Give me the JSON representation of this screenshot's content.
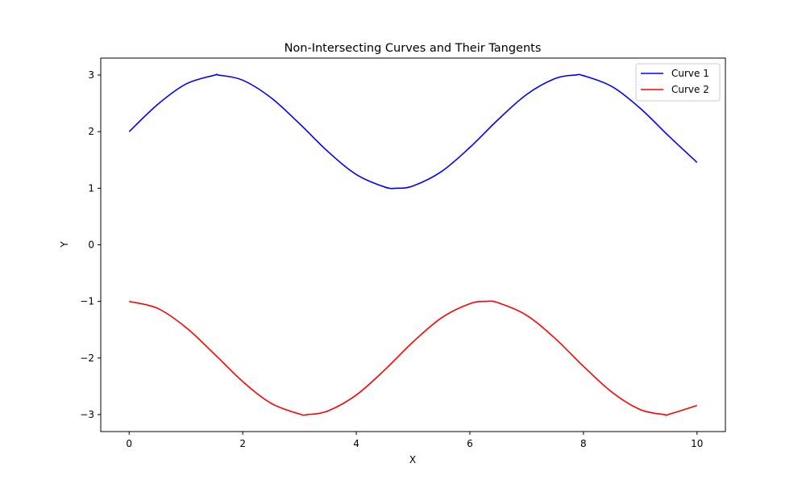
{
  "chart_data": {
    "type": "line",
    "title": "Non-Intersecting Curves and Their Tangents",
    "xlabel": "X",
    "ylabel": "Y",
    "xlim": [
      -0.5,
      10.5
    ],
    "ylim": [
      -3.3,
      3.3
    ],
    "xticks": [
      0,
      2,
      4,
      6,
      8,
      10
    ],
    "xtick_labels": [
      "0",
      "2",
      "4",
      "6",
      "8",
      "10"
    ],
    "yticks": [
      -3,
      -2,
      -1,
      0,
      1,
      2,
      3
    ],
    "ytick_labels": [
      "−3",
      "−2",
      "−1",
      "0",
      "1",
      "2",
      "3"
    ],
    "grid": false,
    "legend_position": "top-right",
    "series": [
      {
        "name": "Curve 1",
        "color": "#0000ff",
        "x": [
          0,
          0.5,
          1,
          1.5,
          1.571,
          2,
          2.5,
          3,
          3.5,
          4,
          4.5,
          4.712,
          5,
          5.5,
          6,
          6.5,
          7,
          7.5,
          7.854,
          8,
          8.5,
          9,
          9.5,
          10
        ],
        "y": [
          2,
          2.479,
          2.841,
          2.997,
          3,
          2.909,
          2.598,
          2.141,
          1.649,
          1.243,
          1.022,
          1,
          1.041,
          1.295,
          1.721,
          2.215,
          2.657,
          2.938,
          3,
          2.989,
          2.798,
          2.412,
          1.925,
          1.456
        ]
      },
      {
        "name": "Curve 2",
        "color": "#ff0000",
        "x": [
          0,
          0.5,
          1,
          1.5,
          2,
          2.5,
          3,
          3.142,
          3.5,
          4,
          4.5,
          5,
          5.5,
          6,
          6.283,
          6.5,
          7,
          7.5,
          8,
          8.5,
          9,
          9.425,
          9.5,
          10
        ],
        "y": [
          -1,
          -1.122,
          -1.46,
          -1.929,
          -2.416,
          -2.801,
          -2.99,
          -3,
          -2.936,
          -2.654,
          -2.211,
          -1.716,
          -1.291,
          -1.04,
          -1,
          -1.024,
          -1.246,
          -1.653,
          -2.146,
          -2.602,
          -2.911,
          -3,
          -2.997,
          -2.839
        ]
      }
    ]
  }
}
